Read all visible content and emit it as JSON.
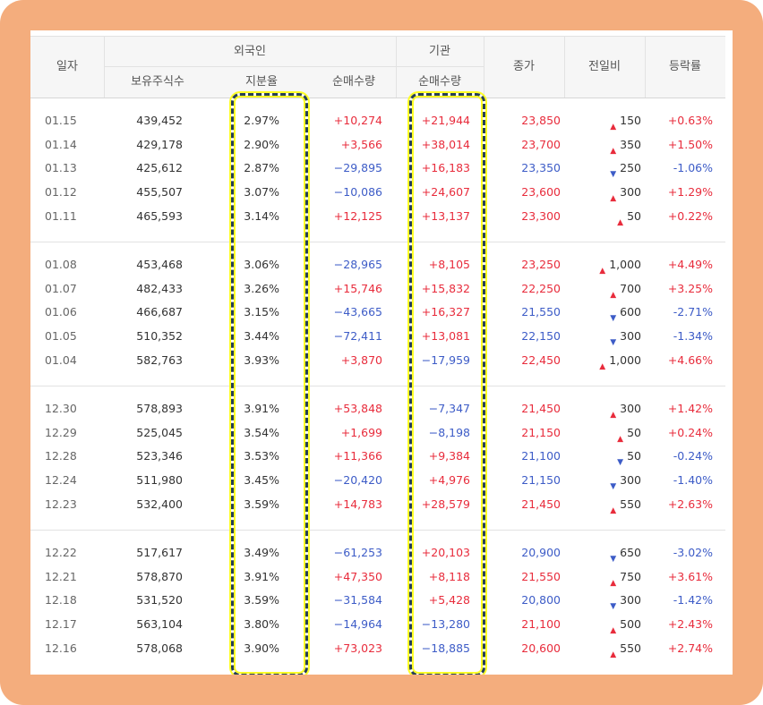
{
  "header": {
    "date": "일자",
    "foreign": "외국인",
    "institution": "기관",
    "holdings": "보유주식수",
    "ratio": "지분율",
    "foreign_net": "순매수량",
    "inst_net": "순매수량",
    "close": "종가",
    "change": "전일비",
    "rate": "등락률"
  },
  "colors": {
    "up": "#e82c3c",
    "down": "#3d5cc7",
    "frame": "#f4ad7d",
    "highlight_border": "#263f55",
    "highlight_glow": "#ffff24"
  },
  "groups": [
    [
      {
        "date": "01.15",
        "hold": "439,452",
        "ratio": "2.97%",
        "fnet": "+10,274",
        "inet": "+21,944",
        "close": "23,850",
        "diff": "150",
        "dir": "up",
        "rate": "+0.63%"
      },
      {
        "date": "01.14",
        "hold": "429,178",
        "ratio": "2.90%",
        "fnet": "+3,566",
        "inet": "+38,014",
        "close": "23,700",
        "diff": "350",
        "dir": "up",
        "rate": "+1.50%"
      },
      {
        "date": "01.13",
        "hold": "425,612",
        "ratio": "2.87%",
        "fnet": "−29,895",
        "inet": "+16,183",
        "close": "23,350",
        "diff": "250",
        "dir": "down",
        "rate": "-1.06%"
      },
      {
        "date": "01.12",
        "hold": "455,507",
        "ratio": "3.07%",
        "fnet": "−10,086",
        "inet": "+24,607",
        "close": "23,600",
        "diff": "300",
        "dir": "up",
        "rate": "+1.29%"
      },
      {
        "date": "01.11",
        "hold": "465,593",
        "ratio": "3.14%",
        "fnet": "+12,125",
        "inet": "+13,137",
        "close": "23,300",
        "diff": "50",
        "dir": "up",
        "rate": "+0.22%"
      }
    ],
    [
      {
        "date": "01.08",
        "hold": "453,468",
        "ratio": "3.06%",
        "fnet": "−28,965",
        "inet": "+8,105",
        "close": "23,250",
        "diff": "1,000",
        "dir": "up",
        "rate": "+4.49%"
      },
      {
        "date": "01.07",
        "hold": "482,433",
        "ratio": "3.26%",
        "fnet": "+15,746",
        "inet": "+15,832",
        "close": "22,250",
        "diff": "700",
        "dir": "up",
        "rate": "+3.25%"
      },
      {
        "date": "01.06",
        "hold": "466,687",
        "ratio": "3.15%",
        "fnet": "−43,665",
        "inet": "+16,327",
        "close": "21,550",
        "diff": "600",
        "dir": "down",
        "rate": "-2.71%"
      },
      {
        "date": "01.05",
        "hold": "510,352",
        "ratio": "3.44%",
        "fnet": "−72,411",
        "inet": "+13,081",
        "close": "22,150",
        "diff": "300",
        "dir": "down",
        "rate": "-1.34%"
      },
      {
        "date": "01.04",
        "hold": "582,763",
        "ratio": "3.93%",
        "fnet": "+3,870",
        "inet": "−17,959",
        "close": "22,450",
        "diff": "1,000",
        "dir": "up",
        "rate": "+4.66%"
      }
    ],
    [
      {
        "date": "12.30",
        "hold": "578,893",
        "ratio": "3.91%",
        "fnet": "+53,848",
        "inet": "−7,347",
        "close": "21,450",
        "diff": "300",
        "dir": "up",
        "rate": "+1.42%"
      },
      {
        "date": "12.29",
        "hold": "525,045",
        "ratio": "3.54%",
        "fnet": "+1,699",
        "inet": "−8,198",
        "close": "21,150",
        "diff": "50",
        "dir": "up",
        "rate": "+0.24%"
      },
      {
        "date": "12.28",
        "hold": "523,346",
        "ratio": "3.53%",
        "fnet": "+11,366",
        "inet": "+9,384",
        "close": "21,100",
        "diff": "50",
        "dir": "down",
        "rate": "-0.24%"
      },
      {
        "date": "12.24",
        "hold": "511,980",
        "ratio": "3.45%",
        "fnet": "−20,420",
        "inet": "+4,976",
        "close": "21,150",
        "diff": "300",
        "dir": "down",
        "rate": "-1.40%"
      },
      {
        "date": "12.23",
        "hold": "532,400",
        "ratio": "3.59%",
        "fnet": "+14,783",
        "inet": "+28,579",
        "close": "21,450",
        "diff": "550",
        "dir": "up",
        "rate": "+2.63%"
      }
    ],
    [
      {
        "date": "12.22",
        "hold": "517,617",
        "ratio": "3.49%",
        "fnet": "−61,253",
        "inet": "+20,103",
        "close": "20,900",
        "diff": "650",
        "dir": "down",
        "rate": "-3.02%"
      },
      {
        "date": "12.21",
        "hold": "578,870",
        "ratio": "3.91%",
        "fnet": "+47,350",
        "inet": "+8,118",
        "close": "21,550",
        "diff": "750",
        "dir": "up",
        "rate": "+3.61%"
      },
      {
        "date": "12.18",
        "hold": "531,520",
        "ratio": "3.59%",
        "fnet": "−31,584",
        "inet": "+5,428",
        "close": "20,800",
        "diff": "300",
        "dir": "down",
        "rate": "-1.42%"
      },
      {
        "date": "12.17",
        "hold": "563,104",
        "ratio": "3.80%",
        "fnet": "−14,964",
        "inet": "−13,280",
        "close": "21,100",
        "diff": "500",
        "dir": "up",
        "rate": "+2.43%"
      },
      {
        "date": "12.16",
        "hold": "578,068",
        "ratio": "3.90%",
        "fnet": "+73,023",
        "inet": "−18,885",
        "close": "20,600",
        "diff": "550",
        "dir": "up",
        "rate": "+2.74%"
      }
    ]
  ]
}
